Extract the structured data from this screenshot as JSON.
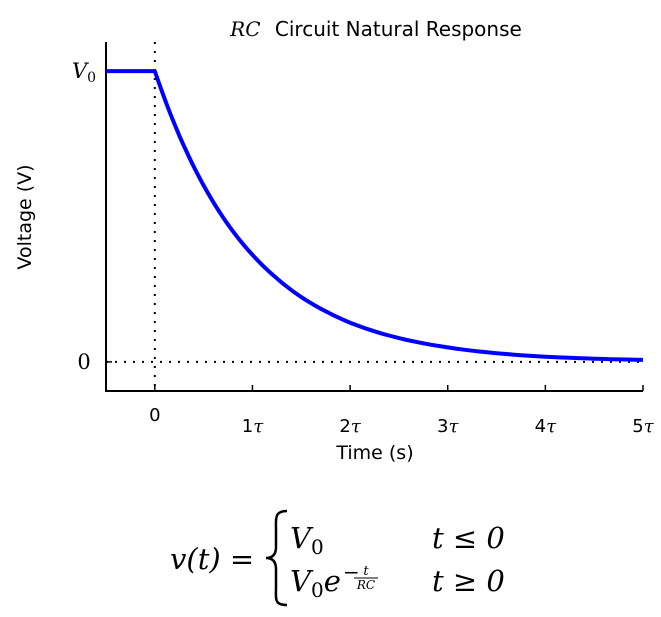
{
  "chart_data": {
    "type": "line",
    "title": {
      "math": "RC",
      "text": "Circuit Natural Response"
    },
    "xlabel": "Time (s)",
    "ylabel": "Voltage (V)",
    "xlim": [
      -0.5,
      5
    ],
    "ylim": [
      -0.1,
      1.1
    ],
    "x_ticks": [
      {
        "value": 0,
        "num": "0",
        "sym": ""
      },
      {
        "value": 1,
        "num": "1",
        "sym": "τ"
      },
      {
        "value": 2,
        "num": "2",
        "sym": "τ"
      },
      {
        "value": 3,
        "num": "3",
        "sym": "τ"
      },
      {
        "value": 4,
        "num": "4",
        "sym": "τ"
      },
      {
        "value": 5,
        "num": "5",
        "sym": "τ"
      }
    ],
    "y_ticks": [
      {
        "value": 1,
        "base": "V",
        "sub": "0"
      },
      {
        "value": 0,
        "base": "0",
        "sub": ""
      }
    ],
    "reference_lines": [
      {
        "orientation": "vertical",
        "at": 0,
        "style": "dotted"
      },
      {
        "orientation": "horizontal",
        "at": 0,
        "style": "dotted"
      }
    ],
    "series": [
      {
        "color": "#0000ff",
        "points": [
          [
            -0.5,
            1
          ],
          [
            0,
            1
          ],
          [
            0.25,
            0.779
          ],
          [
            0.5,
            0.607
          ],
          [
            0.75,
            0.472
          ],
          [
            1,
            0.368
          ],
          [
            1.25,
            0.287
          ],
          [
            1.5,
            0.223
          ],
          [
            1.75,
            0.174
          ],
          [
            2,
            0.135
          ],
          [
            2.5,
            0.082
          ],
          [
            3,
            0.05
          ],
          [
            3.5,
            0.03
          ],
          [
            4,
            0.018
          ],
          [
            4.5,
            0.011
          ],
          [
            5,
            0.007
          ]
        ]
      }
    ],
    "grid": false,
    "legend": "none"
  },
  "formula": {
    "lhs": "v(t) =",
    "case1": {
      "expr_base": "V",
      "expr_sub": "0",
      "condition": "t ≤ 0"
    },
    "case2": {
      "expr_base": "V",
      "expr_sub": "0",
      "expr_e": "e",
      "exponent_sign": "−",
      "exponent_num": "t",
      "exponent_den": "RC",
      "condition": "t ≥ 0"
    }
  },
  "colors": {
    "series": "#0000ff",
    "axes": "#000000"
  }
}
